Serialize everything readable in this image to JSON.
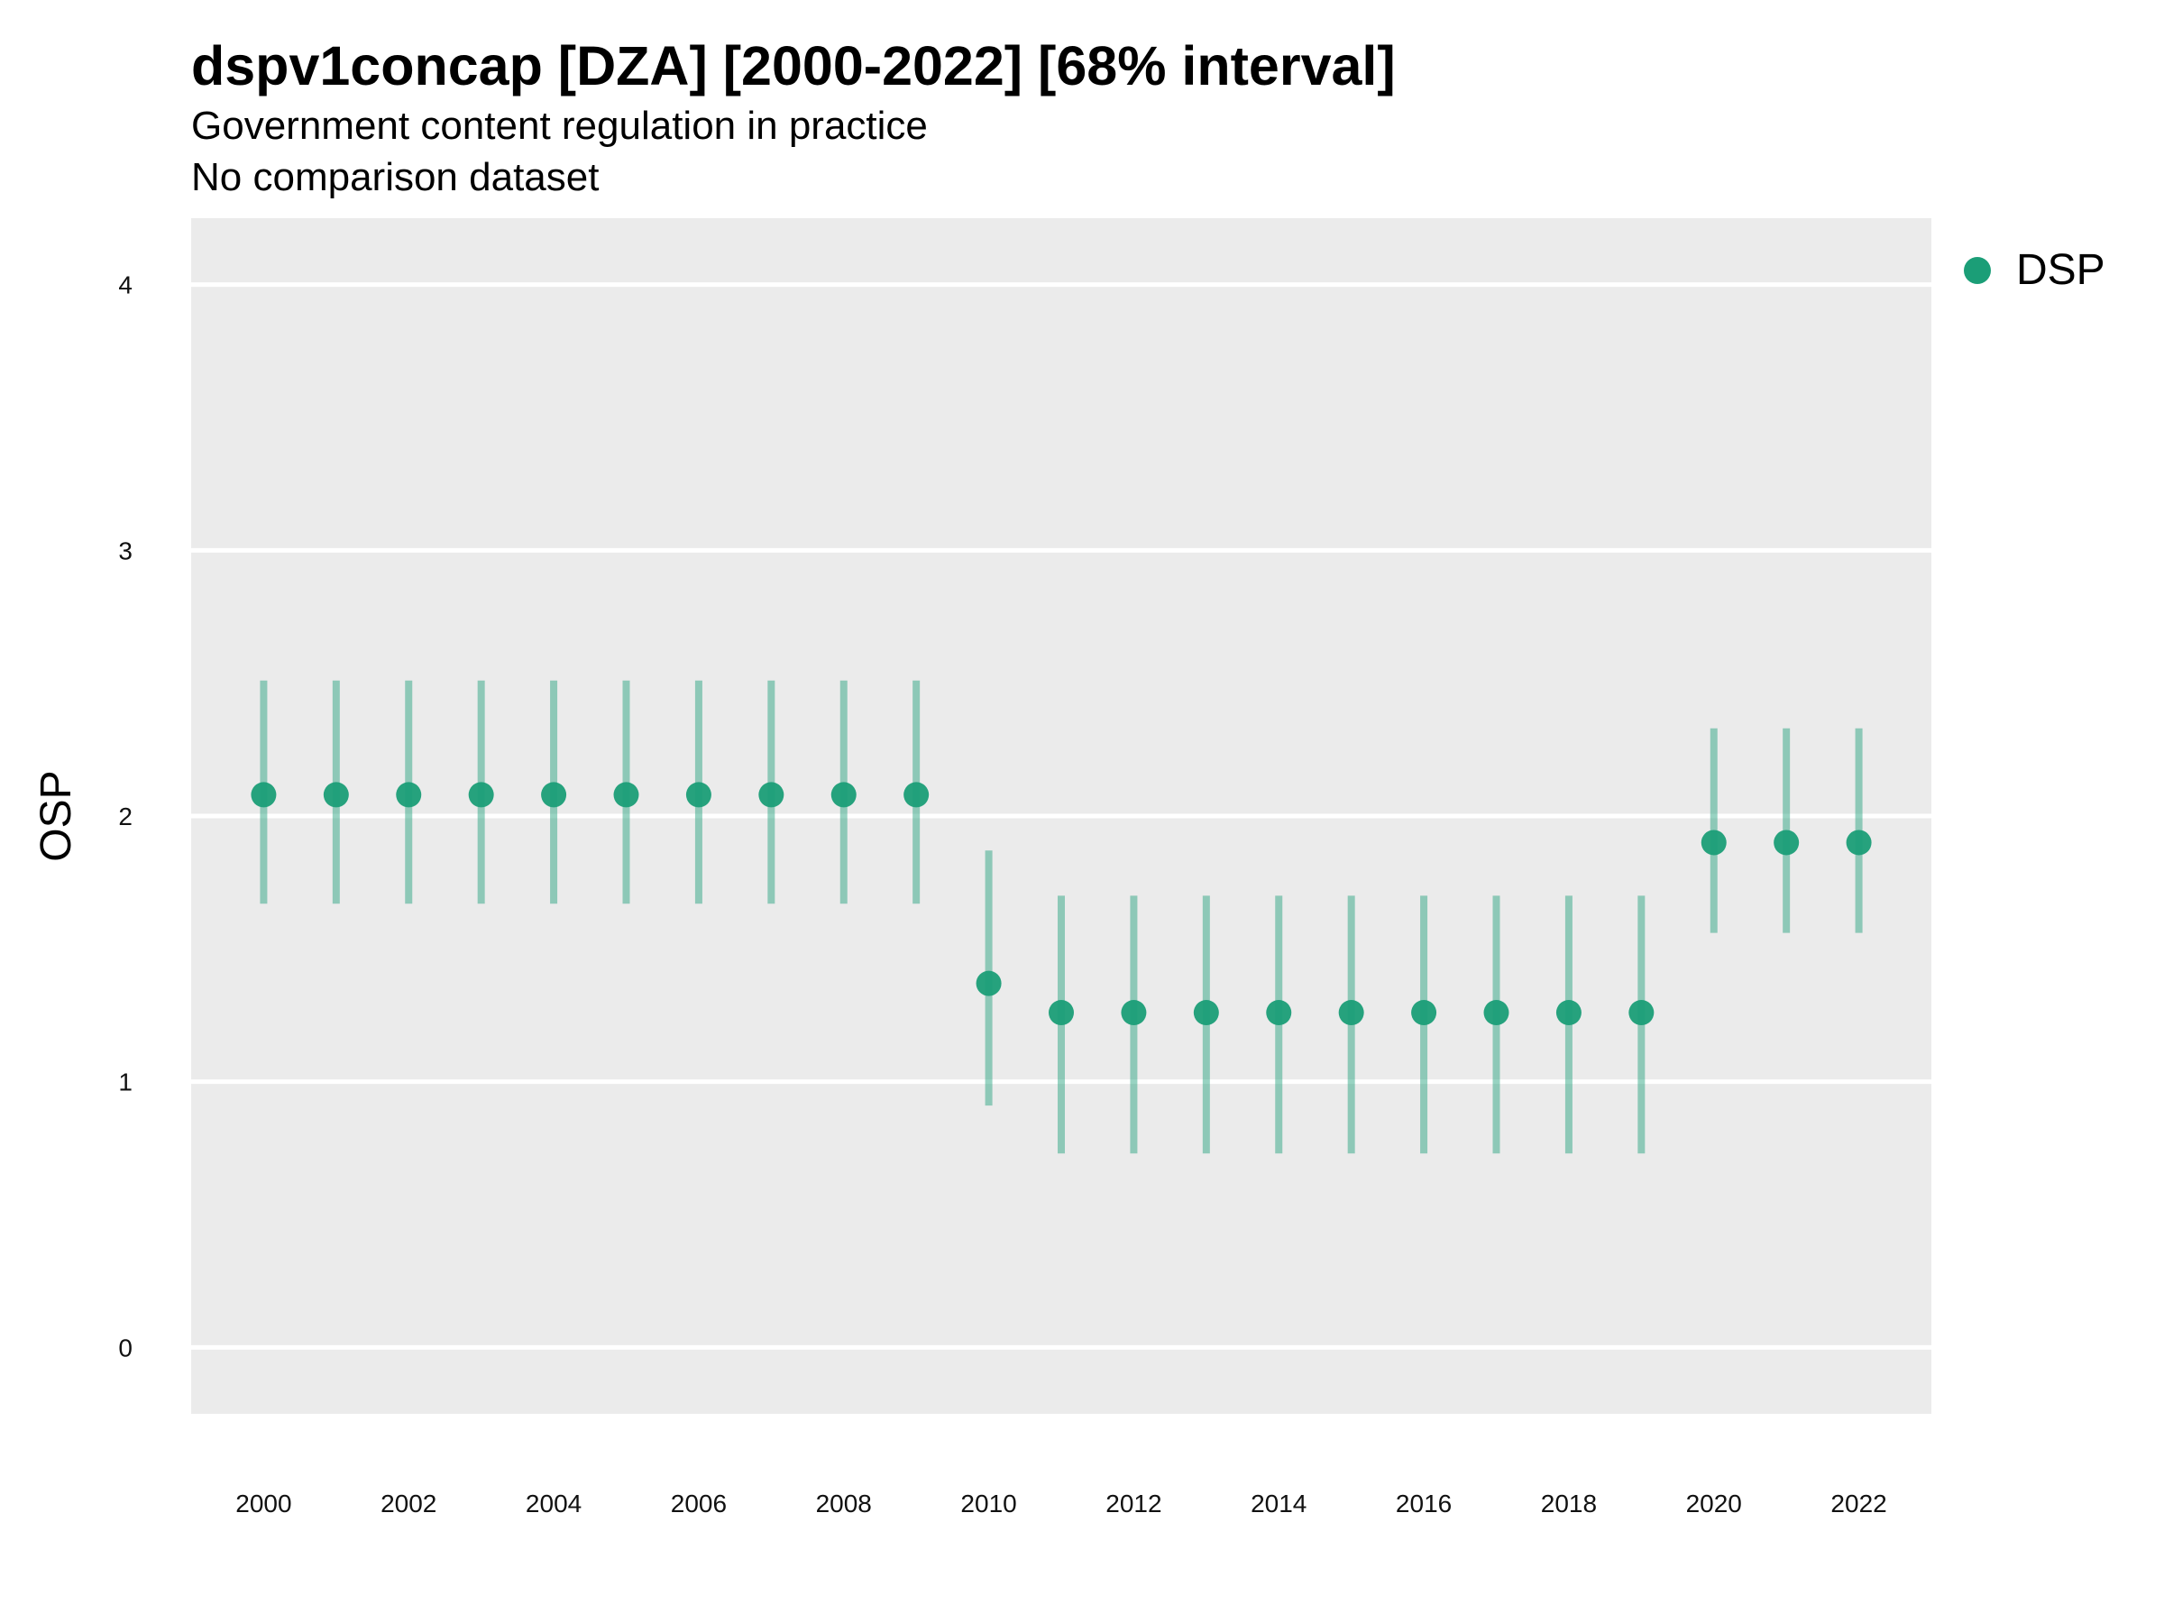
{
  "title": "dspv1concap [DZA] [2000-2022] [68% interval]",
  "subtitle": "Government content regulation in practice",
  "subtitle2": "No comparison dataset",
  "chart_data": {
    "type": "scatter",
    "title": "dspv1concap [DZA] [2000-2022] [68% interval]",
    "xlabel": "",
    "ylabel": "OSP",
    "xlim": [
      1999,
      2023
    ],
    "ylim": [
      -0.25,
      4.25
    ],
    "grid": true,
    "legend_position": "right",
    "x_ticks": [
      2000,
      2002,
      2004,
      2006,
      2008,
      2010,
      2012,
      2014,
      2016,
      2018,
      2020,
      2022
    ],
    "y_ticks": [
      0,
      1,
      2,
      3,
      4
    ],
    "series": [
      {
        "name": "DSP",
        "color": "#1b9e77",
        "x": [
          2000,
          2001,
          2002,
          2003,
          2004,
          2005,
          2006,
          2007,
          2008,
          2009,
          2010,
          2011,
          2012,
          2013,
          2014,
          2015,
          2016,
          2017,
          2018,
          2019,
          2020,
          2021,
          2022
        ],
        "y": [
          2.08,
          2.08,
          2.08,
          2.08,
          2.08,
          2.08,
          2.08,
          2.08,
          2.08,
          2.08,
          1.37,
          1.26,
          1.26,
          1.26,
          1.26,
          1.26,
          1.26,
          1.26,
          1.26,
          1.26,
          1.9,
          1.9,
          1.9
        ],
        "lower": [
          1.67,
          1.67,
          1.67,
          1.67,
          1.67,
          1.67,
          1.67,
          1.67,
          1.67,
          1.67,
          0.91,
          0.73,
          0.73,
          0.73,
          0.73,
          0.73,
          0.73,
          0.73,
          0.73,
          0.73,
          1.56,
          1.56,
          1.56
        ],
        "upper": [
          2.51,
          2.51,
          2.51,
          2.51,
          2.51,
          2.51,
          2.51,
          2.51,
          2.51,
          2.51,
          1.87,
          1.7,
          1.7,
          1.7,
          1.7,
          1.7,
          1.7,
          1.7,
          1.7,
          1.7,
          2.33,
          2.33,
          2.33
        ]
      }
    ]
  }
}
